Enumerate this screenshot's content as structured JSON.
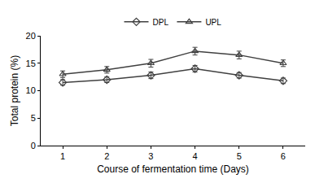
{
  "chart_data": {
    "type": "line",
    "x_label": "Course of fermentation time (Days)",
    "y_label": "Total protein (%)",
    "x": [
      1,
      2,
      3,
      4,
      5,
      6
    ],
    "series": [
      {
        "name": "DPL",
        "color": "#404040",
        "marker": "diamond",
        "values": [
          11.5,
          12.0,
          12.8,
          14.0,
          12.8,
          11.8
        ],
        "errors": [
          0.5,
          0.5,
          0.6,
          0.6,
          0.5,
          0.5
        ]
      },
      {
        "name": "UPL",
        "color": "#404040",
        "marker": "triangle",
        "values": [
          13.0,
          13.8,
          15.0,
          17.2,
          16.5,
          15.0
        ],
        "errors": [
          0.6,
          0.6,
          0.7,
          0.7,
          0.7,
          0.6
        ]
      }
    ],
    "xlim": [
      0.5,
      6.5
    ],
    "xticks": [
      1,
      2,
      3,
      4,
      5,
      6
    ],
    "ylim": [
      0,
      20
    ],
    "yticks": [
      0,
      5,
      10,
      15,
      20
    ],
    "grid": false,
    "legend": "top"
  }
}
